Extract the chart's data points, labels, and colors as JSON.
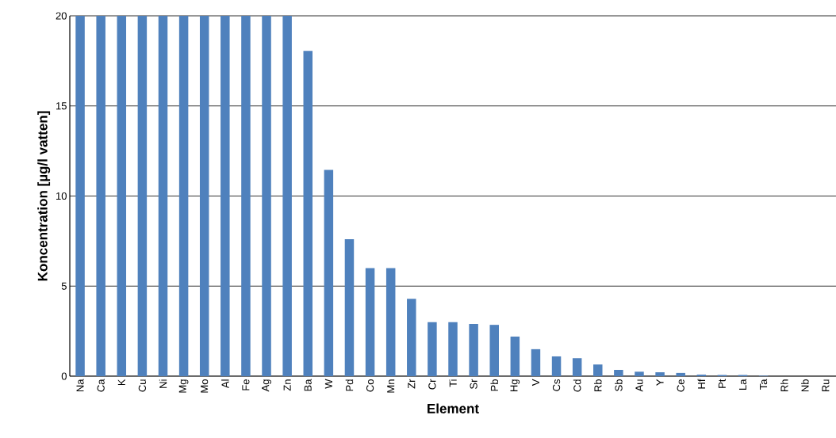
{
  "chart_data": {
    "type": "bar",
    "xlabel": "Element",
    "ylabel": "Koncentration [µg/l vatten]",
    "categories": [
      "Na",
      "Ca",
      "K",
      "Cu",
      "Ni",
      "Mg",
      "Mo",
      "Al",
      "Fe",
      "Ag",
      "Zn",
      "Ba",
      "W",
      "Pd",
      "Co",
      "Mn",
      "Zr",
      "Cr",
      "Ti",
      "Sr",
      "Pb",
      "Hg",
      "V",
      "Cs",
      "Cd",
      "Rb",
      "Sb",
      "Au",
      "Y",
      "Ce",
      "Hf",
      "Pt",
      "La",
      "Ta",
      "Rh",
      "Nb",
      "Ru"
    ],
    "values": [
      20,
      20,
      20,
      20,
      20,
      20,
      20,
      20,
      20,
      20,
      20,
      18.05,
      11.45,
      7.6,
      6.0,
      6.0,
      4.3,
      3.0,
      3.0,
      2.9,
      2.85,
      2.2,
      1.5,
      1.1,
      1.0,
      0.65,
      0.35,
      0.25,
      0.22,
      0.18,
      0.09,
      0.07,
      0.07,
      0.03,
      0,
      0,
      0
    ],
    "color": "#4f81bd",
    "ylim": [
      0,
      20
    ],
    "yticks": [
      0,
      5,
      10,
      15,
      20
    ],
    "grid": "y"
  }
}
